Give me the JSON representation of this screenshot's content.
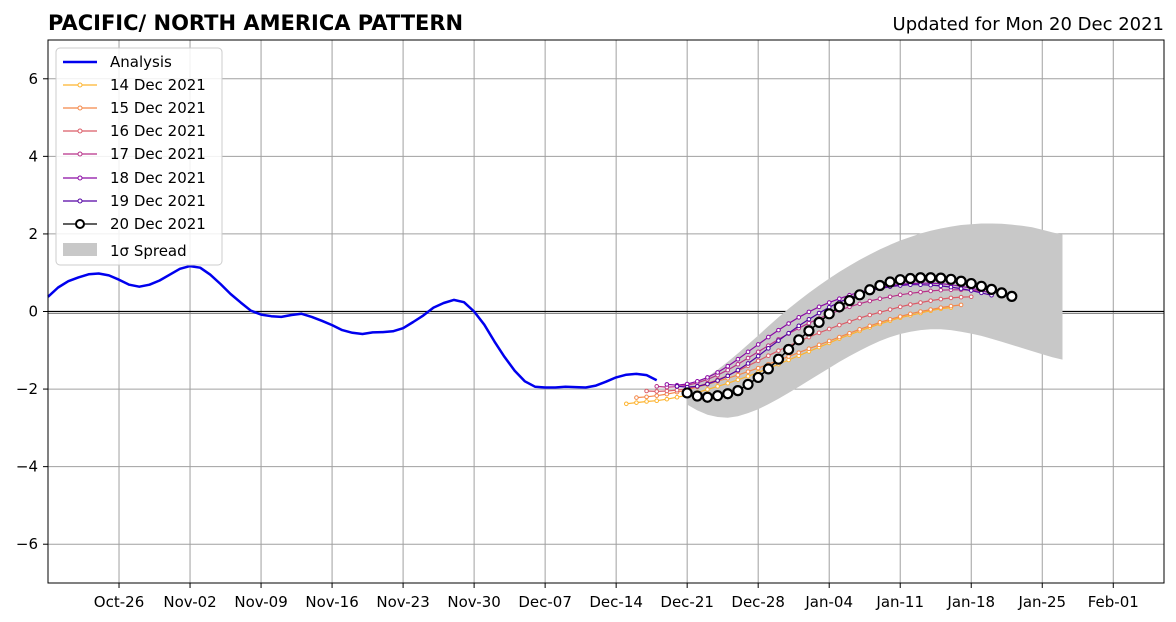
{
  "chart_data": {
    "type": "line",
    "title": "PACIFIC/ NORTH AMERICA PATTERN",
    "subtitle": "Updated for Mon 20 Dec 2021",
    "xlabel": "",
    "ylabel": "",
    "x_axis": "date",
    "xlim": [
      "2021-10-19",
      "2022-02-06"
    ],
    "ylim": [
      -7,
      7
    ],
    "xticks": [
      "Oct-26",
      "Nov-02",
      "Nov-09",
      "Nov-16",
      "Nov-23",
      "Nov-30",
      "Dec-07",
      "Dec-14",
      "Dec-21",
      "Dec-28",
      "Jan-04",
      "Jan-11",
      "Jan-18",
      "Jan-25",
      "Feb-01"
    ],
    "yticks": [
      "6",
      "4",
      "2",
      "0",
      "−2",
      "−4",
      "−6"
    ],
    "grid": true,
    "zero_line": true,
    "legend_position": "upper-left",
    "legend": [
      "Analysis",
      "14 Dec 2021",
      "15 Dec 2021",
      "16 Dec 2021",
      "17 Dec 2021",
      "18 Dec 2021",
      "19 Dec 2021",
      "20 Dec 2021",
      "1σ Spread"
    ],
    "analysis": {
      "name": "Analysis",
      "color": "#0000ee",
      "start_date": "2021-10-19",
      "values": [
        0.38,
        0.62,
        0.78,
        0.88,
        0.96,
        0.98,
        0.93,
        0.82,
        0.69,
        0.64,
        0.69,
        0.8,
        0.95,
        1.1,
        1.17,
        1.13,
        0.95,
        0.71,
        0.45,
        0.23,
        0.02,
        -0.08,
        -0.12,
        -0.14,
        -0.09,
        -0.06,
        -0.14,
        -0.24,
        -0.35,
        -0.48,
        -0.55,
        -0.58,
        -0.54,
        -0.53,
        -0.51,
        -0.43,
        -0.27,
        -0.1,
        0.1,
        0.22,
        0.3,
        0.24,
        0.0,
        -0.34,
        -0.77,
        -1.17,
        -1.53,
        -1.8,
        -1.94,
        -1.96,
        -1.96,
        -1.94,
        -1.95,
        -1.96,
        -1.91,
        -1.81,
        -1.7,
        -1.63,
        -1.61,
        -1.64,
        -1.77
      ]
    },
    "forecasts": [
      {
        "name": "14 Dec 2021",
        "color": "#fdb42f",
        "start_date": "2021-12-15",
        "values": [
          -2.38,
          -2.35,
          -2.32,
          -2.3,
          -2.26,
          -2.21,
          -2.16,
          -2.09,
          -2.01,
          -1.93,
          -1.85,
          -1.76,
          -1.67,
          -1.57,
          -1.47,
          -1.36,
          -1.25,
          -1.14,
          -1.03,
          -0.92,
          -0.81,
          -0.7,
          -0.6,
          -0.5,
          -0.41,
          -0.32,
          -0.24,
          -0.16,
          -0.1,
          -0.04,
          0.02,
          0.07,
          0.1
        ]
      },
      {
        "name": "15 Dec 2021",
        "color": "#f48849",
        "start_date": "2021-12-16",
        "values": [
          -2.22,
          -2.2,
          -2.17,
          -2.13,
          -2.08,
          -2.02,
          -1.95,
          -1.88,
          -1.8,
          -1.72,
          -1.64,
          -1.55,
          -1.46,
          -1.36,
          -1.26,
          -1.16,
          -1.06,
          -0.96,
          -0.86,
          -0.76,
          -0.66,
          -0.56,
          -0.46,
          -0.37,
          -0.28,
          -0.2,
          -0.13,
          -0.06,
          0.0,
          0.05,
          0.1,
          0.14,
          0.17
        ]
      },
      {
        "name": "16 Dec 2021",
        "color": "#db5c68",
        "start_date": "2021-12-17",
        "values": [
          -2.05,
          -2.06,
          -2.05,
          -2.03,
          -1.99,
          -1.93,
          -1.85,
          -1.76,
          -1.65,
          -1.53,
          -1.4,
          -1.27,
          -1.14,
          -1.01,
          -0.89,
          -0.77,
          -0.66,
          -0.55,
          -0.45,
          -0.35,
          -0.26,
          -0.17,
          -0.09,
          -0.02,
          0.05,
          0.12,
          0.18,
          0.23,
          0.28,
          0.32,
          0.35,
          0.37,
          0.38
        ]
      },
      {
        "name": "17 Dec 2021",
        "color": "#b83289",
        "start_date": "2021-12-18",
        "values": [
          -1.93,
          -1.95,
          -1.94,
          -1.9,
          -1.84,
          -1.75,
          -1.64,
          -1.51,
          -1.36,
          -1.2,
          -1.04,
          -0.88,
          -0.72,
          -0.57,
          -0.43,
          -0.3,
          -0.18,
          -0.07,
          0.03,
          0.12,
          0.2,
          0.27,
          0.33,
          0.38,
          0.43,
          0.47,
          0.5,
          0.53,
          0.55,
          0.56,
          0.56,
          0.55,
          0.52
        ]
      },
      {
        "name": "18 Dec 2021",
        "color": "#8b0aa5",
        "start_date": "2021-12-19",
        "values": [
          -1.88,
          -1.9,
          -1.87,
          -1.8,
          -1.7,
          -1.57,
          -1.41,
          -1.23,
          -1.04,
          -0.85,
          -0.66,
          -0.48,
          -0.31,
          -0.15,
          -0.01,
          0.12,
          0.23,
          0.33,
          0.42,
          0.5,
          0.56,
          0.62,
          0.66,
          0.7,
          0.72,
          0.73,
          0.73,
          0.72,
          0.69,
          0.65,
          0.6,
          0.54,
          0.47
        ]
      },
      {
        "name": "19 Dec 2021",
        "color": "#5302a3",
        "start_date": "2021-12-20",
        "values": [
          -1.93,
          -1.95,
          -1.93,
          -1.87,
          -1.78,
          -1.66,
          -1.51,
          -1.34,
          -1.15,
          -0.95,
          -0.75,
          -0.56,
          -0.37,
          -0.2,
          -0.04,
          0.11,
          0.24,
          0.35,
          0.45,
          0.53,
          0.59,
          0.64,
          0.67,
          0.69,
          0.69,
          0.68,
          0.66,
          0.63,
          0.59,
          0.54,
          0.48,
          0.42
        ]
      },
      {
        "name": "20 Dec 2021",
        "color": "#000000",
        "start_date": "2021-12-21",
        "values": [
          -2.1,
          -2.18,
          -2.21,
          -2.17,
          -2.12,
          -2.04,
          -1.88,
          -1.7,
          -1.48,
          -1.23,
          -0.98,
          -0.73,
          -0.5,
          -0.28,
          -0.06,
          0.12,
          0.28,
          0.43,
          0.56,
          0.67,
          0.76,
          0.82,
          0.85,
          0.87,
          0.87,
          0.86,
          0.83,
          0.78,
          0.72,
          0.65,
          0.57,
          0.48,
          0.39
        ]
      }
    ],
    "spread": {
      "name": "1σ Spread",
      "color": "#c8c8c8",
      "start_date": "2021-12-21",
      "upper": [
        -1.9,
        -1.82,
        -1.68,
        -1.5,
        -1.3,
        -1.08,
        -0.85,
        -0.62,
        -0.38,
        -0.15,
        0.07,
        0.28,
        0.48,
        0.67,
        0.85,
        1.02,
        1.18,
        1.33,
        1.47,
        1.6,
        1.72,
        1.83,
        1.92,
        2.01,
        2.08,
        2.14,
        2.19,
        2.23,
        2.25,
        2.27,
        2.27,
        2.26,
        2.24,
        2.21,
        2.17,
        2.11,
        2.04,
        1.98
      ],
      "lower": [
        -2.4,
        -2.55,
        -2.66,
        -2.72,
        -2.74,
        -2.7,
        -2.62,
        -2.52,
        -2.39,
        -2.25,
        -2.1,
        -1.94,
        -1.78,
        -1.62,
        -1.46,
        -1.3,
        -1.15,
        -1.01,
        -0.88,
        -0.76,
        -0.66,
        -0.58,
        -0.52,
        -0.48,
        -0.46,
        -0.46,
        -0.48,
        -0.52,
        -0.57,
        -0.63,
        -0.7,
        -0.78,
        -0.86,
        -0.94,
        -1.02,
        -1.1,
        -1.18,
        -1.24
      ]
    }
  }
}
